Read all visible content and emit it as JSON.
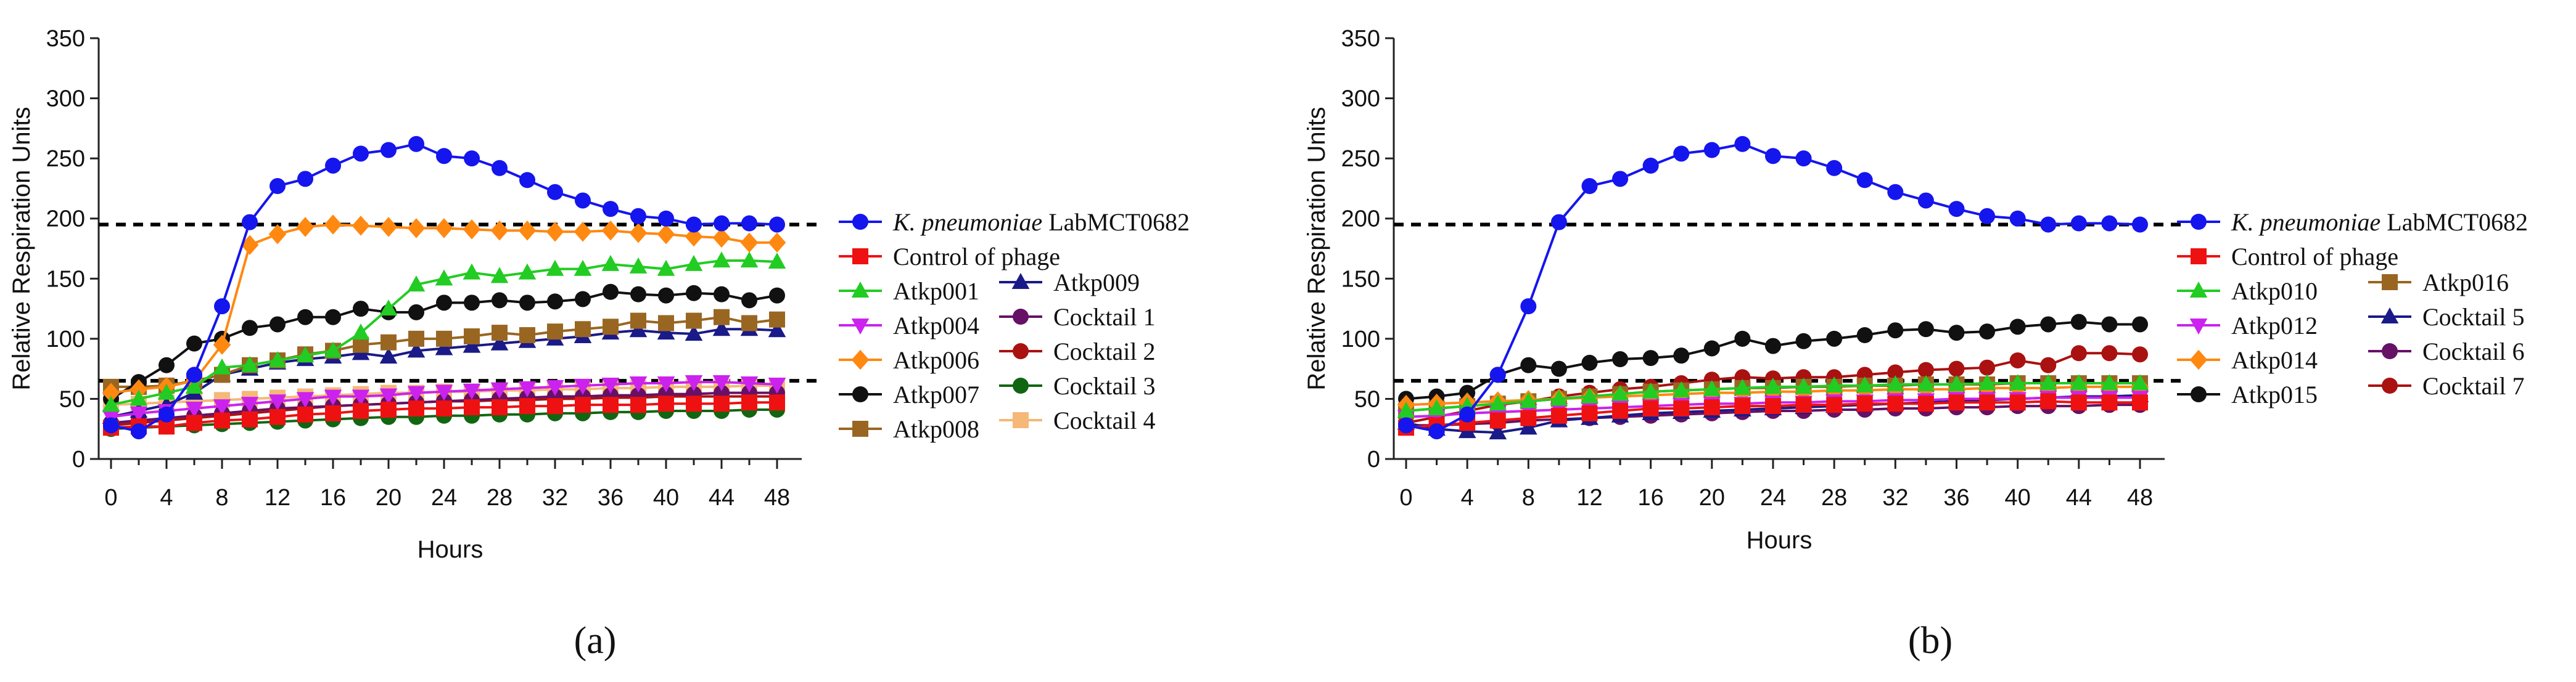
{
  "figure": {
    "panels": [
      {
        "label": "(a)",
        "letter": "a"
      },
      {
        "label": "(b)",
        "letter": "b"
      }
    ]
  },
  "chart_data": [
    {
      "type": "line",
      "panel": "(a)",
      "title": "",
      "xlabel": "Hours",
      "ylabel": "Relative Respiration Units",
      "xlim": [
        0,
        48
      ],
      "ylim": [
        0,
        350
      ],
      "xticks": [
        0,
        4,
        8,
        12,
        16,
        20,
        24,
        28,
        32,
        36,
        40,
        44,
        48
      ],
      "yticks": [
        0,
        50,
        100,
        150,
        200,
        250,
        300,
        350
      ],
      "x": [
        0,
        2,
        4,
        6,
        8,
        10,
        12,
        14,
        16,
        18,
        20,
        22,
        24,
        26,
        28,
        30,
        32,
        34,
        36,
        38,
        40,
        42,
        44,
        46,
        48
      ],
      "thresholds": [
        195,
        65
      ],
      "series": [
        {
          "name": "K. pneumoniae LabMCT0682",
          "name_italic": "K. pneumoniae",
          "name_rest": " LabMCT0682",
          "color": "#1515ee",
          "marker": "circle",
          "values": [
            28,
            23,
            37,
            70,
            127,
            197,
            227,
            233,
            244,
            254,
            257,
            262,
            252,
            250,
            242,
            232,
            222,
            215,
            208,
            202,
            200,
            195,
            196,
            196,
            195
          ]
        },
        {
          "name": "Control of phage",
          "color": "#ee1111",
          "marker": "square",
          "values": [
            26,
            27,
            27,
            30,
            32,
            33,
            35,
            37,
            38,
            40,
            41,
            42,
            42,
            43,
            43,
            44,
            44,
            45,
            45,
            45,
            46,
            46,
            46,
            47,
            47
          ]
        },
        {
          "name": "Atkp001",
          "color": "#22cc22",
          "marker": "triangle-up",
          "values": [
            45,
            50,
            55,
            60,
            76,
            78,
            82,
            86,
            90,
            105,
            125,
            145,
            150,
            155,
            152,
            155,
            158,
            158,
            162,
            160,
            158,
            162,
            165,
            165,
            164
          ]
        },
        {
          "name": "Atkp004",
          "color": "#cc22ee",
          "marker": "triangle-down",
          "values": [
            35,
            38,
            40,
            42,
            44,
            46,
            48,
            50,
            52,
            52,
            53,
            55,
            56,
            57,
            58,
            59,
            60,
            61,
            62,
            63,
            63,
            64,
            64,
            63,
            62
          ]
        },
        {
          "name": "Atkp006",
          "color": "#ff8811",
          "marker": "diamond",
          "values": [
            55,
            58,
            60,
            65,
            95,
            178,
            187,
            193,
            195,
            194,
            193,
            192,
            192,
            191,
            190,
            190,
            189,
            189,
            190,
            188,
            187,
            185,
            184,
            180,
            180
          ]
        },
        {
          "name": "Atkp007",
          "color": "#111111",
          "marker": "circle",
          "values": [
            50,
            64,
            78,
            96,
            100,
            109,
            112,
            118,
            118,
            125,
            122,
            122,
            130,
            130,
            132,
            130,
            131,
            133,
            139,
            137,
            136,
            138,
            137,
            132,
            136
          ]
        },
        {
          "name": "Atkp008",
          "color": "#996622",
          "marker": "square",
          "values": [
            60,
            60,
            61,
            65,
            70,
            78,
            82,
            87,
            90,
            95,
            97,
            100,
            100,
            102,
            105,
            103,
            106,
            108,
            110,
            115,
            113,
            115,
            118,
            113,
            116
          ]
        },
        {
          "name": "Atkp009",
          "color": "#1a1a88",
          "marker": "triangle-up",
          "values": [
            35,
            40,
            45,
            55,
            70,
            75,
            80,
            83,
            85,
            88,
            85,
            90,
            92,
            94,
            96,
            98,
            100,
            102,
            105,
            107,
            105,
            104,
            108,
            108,
            107
          ]
        },
        {
          "name": "Cocktail 1",
          "color": "#661166",
          "marker": "circle",
          "values": [
            30,
            32,
            34,
            36,
            38,
            40,
            42,
            43,
            44,
            45,
            46,
            47,
            48,
            49,
            50,
            51,
            52,
            52,
            53,
            53,
            54,
            54,
            55,
            55,
            55
          ]
        },
        {
          "name": "Cocktail 2",
          "color": "#aa1111",
          "marker": "circle",
          "values": [
            28,
            30,
            32,
            34,
            36,
            38,
            40,
            42,
            44,
            45,
            46,
            47,
            48,
            48,
            49,
            49,
            50,
            50,
            51,
            51,
            52,
            52,
            52,
            52,
            52
          ]
        },
        {
          "name": "Cocktail 3",
          "color": "#116611",
          "marker": "circle",
          "values": [
            25,
            26,
            27,
            28,
            29,
            30,
            31,
            32,
            33,
            34,
            35,
            35,
            36,
            36,
            37,
            37,
            38,
            38,
            39,
            39,
            40,
            40,
            40,
            41,
            41
          ]
        },
        {
          "name": "Cocktail 4",
          "color": "#f5b878",
          "marker": "square",
          "values": [
            45,
            46,
            47,
            48,
            49,
            50,
            51,
            52,
            53,
            54,
            55,
            55,
            56,
            56,
            57,
            57,
            58,
            58,
            59,
            59,
            60,
            60,
            60,
            61,
            61
          ]
        }
      ]
    },
    {
      "type": "line",
      "panel": "(b)",
      "title": "",
      "xlabel": "Hours",
      "ylabel": "Relative Respiration Units",
      "xlim": [
        0,
        48
      ],
      "ylim": [
        0,
        350
      ],
      "xticks": [
        0,
        4,
        8,
        12,
        16,
        20,
        24,
        28,
        32,
        36,
        40,
        44,
        48
      ],
      "yticks": [
        0,
        50,
        100,
        150,
        200,
        250,
        300,
        350
      ],
      "x": [
        0,
        2,
        4,
        6,
        8,
        10,
        12,
        14,
        16,
        18,
        20,
        22,
        24,
        26,
        28,
        30,
        32,
        34,
        36,
        38,
        40,
        42,
        44,
        46,
        48
      ],
      "thresholds": [
        195,
        65
      ],
      "series": [
        {
          "name": "K. pneumoniae LabMCT0682",
          "name_italic": "K. pneumoniae",
          "name_rest": " LabMCT0682",
          "color": "#1515ee",
          "marker": "circle",
          "values": [
            28,
            23,
            37,
            70,
            127,
            197,
            227,
            233,
            244,
            254,
            257,
            262,
            252,
            250,
            242,
            232,
            222,
            215,
            208,
            202,
            200,
            195,
            196,
            196,
            195
          ]
        },
        {
          "name": "Control of phage",
          "color": "#ee1111",
          "marker": "square",
          "values": [
            26,
            28,
            30,
            32,
            34,
            36,
            38,
            40,
            42,
            42,
            43,
            44,
            44,
            45,
            45,
            46,
            46,
            46,
            47,
            47,
            47,
            48,
            47,
            47,
            47
          ]
        },
        {
          "name": "Atkp010",
          "color": "#22cc22",
          "marker": "triangle-up",
          "values": [
            40,
            42,
            44,
            46,
            48,
            50,
            52,
            54,
            56,
            57,
            58,
            59,
            60,
            60,
            61,
            61,
            62,
            62,
            62,
            63,
            63,
            63,
            63,
            63,
            63
          ]
        },
        {
          "name": "Atkp012",
          "color": "#cc22ee",
          "marker": "triangle-down",
          "values": [
            35,
            36,
            38,
            39,
            40,
            41,
            42,
            43,
            44,
            45,
            46,
            46,
            47,
            47,
            48,
            48,
            49,
            49,
            50,
            50,
            50,
            51,
            51,
            51,
            51
          ]
        },
        {
          "name": "Atkp014",
          "color": "#ff8811",
          "marker": "diamond",
          "values": [
            45,
            46,
            47,
            48,
            49,
            50,
            51,
            52,
            53,
            54,
            55,
            55,
            56,
            56,
            57,
            57,
            58,
            58,
            58,
            59,
            59,
            59,
            60,
            60,
            60
          ]
        },
        {
          "name": "Atkp015",
          "color": "#111111",
          "marker": "circle",
          "values": [
            50,
            52,
            55,
            70,
            78,
            75,
            80,
            83,
            84,
            86,
            92,
            100,
            94,
            98,
            100,
            103,
            107,
            108,
            105,
            106,
            110,
            112,
            114,
            112,
            112
          ]
        },
        {
          "name": "Atkp016",
          "color": "#996622",
          "marker": "square",
          "values": [
            40,
            42,
            44,
            46,
            48,
            50,
            52,
            54,
            56,
            57,
            58,
            59,
            59,
            60,
            60,
            61,
            61,
            62,
            62,
            62,
            63,
            63,
            63,
            63,
            63
          ]
        },
        {
          "name": "Cocktail 5",
          "color": "#1a1a88",
          "marker": "triangle-up",
          "values": [
            30,
            25,
            23,
            22,
            26,
            32,
            34,
            36,
            38,
            39,
            40,
            41,
            42,
            43,
            44,
            45,
            46,
            47,
            48,
            49,
            50,
            51,
            52,
            52,
            53
          ]
        },
        {
          "name": "Cocktail 6",
          "color": "#661166",
          "marker": "circle",
          "values": [
            28,
            28,
            29,
            30,
            32,
            33,
            34,
            35,
            36,
            37,
            38,
            39,
            40,
            40,
            41,
            41,
            42,
            42,
            43,
            43,
            44,
            44,
            44,
            45,
            45
          ]
        },
        {
          "name": "Cocktail 7",
          "color": "#aa1111",
          "marker": "circle",
          "values": [
            30,
            35,
            40,
            45,
            48,
            52,
            55,
            58,
            60,
            63,
            66,
            68,
            67,
            68,
            68,
            70,
            72,
            74,
            75,
            76,
            82,
            78,
            88,
            88,
            87
          ]
        }
      ]
    }
  ]
}
